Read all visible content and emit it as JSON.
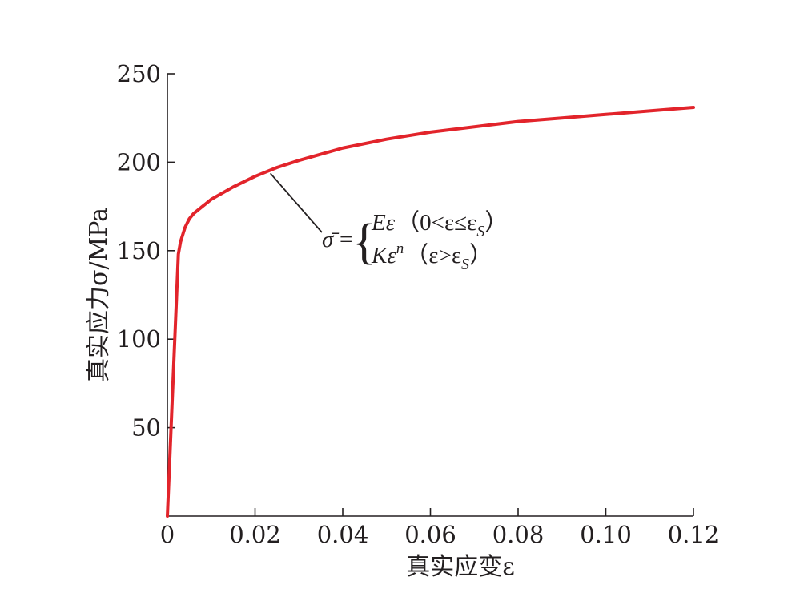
{
  "chart_data": {
    "type": "line",
    "xlabel": "真实应变ε",
    "ylabel": "真实应力σ/MPa",
    "xlim": [
      0,
      0.12
    ],
    "ylim": [
      0,
      250
    ],
    "x_ticks": [
      0,
      0.02,
      0.04,
      0.06,
      0.08,
      0.1,
      0.12
    ],
    "x_tick_labels": [
      "0",
      "0.02",
      "0.04",
      "0.06",
      "0.08",
      "0.10",
      "0.12"
    ],
    "y_ticks": [
      50,
      100,
      150,
      200,
      250
    ],
    "y_tick_labels": [
      "50",
      "100",
      "150",
      "200",
      "250"
    ],
    "grid": false,
    "color": "#e2242b",
    "series": [
      {
        "x": [
          0,
          0.0025,
          0.003,
          0.004,
          0.005,
          0.006,
          0.008,
          0.01,
          0.015,
          0.02,
          0.025,
          0.03,
          0.04,
          0.05,
          0.06,
          0.07,
          0.08,
          0.09,
          0.1,
          0.11,
          0.12
        ],
        "y": [
          0,
          148,
          155,
          163,
          168,
          171,
          175,
          179,
          186,
          192,
          197,
          201,
          208,
          213,
          217,
          220,
          223,
          225,
          227,
          229,
          231
        ]
      }
    ],
    "annotation": {
      "lhs": "σ̄",
      "equals": "=",
      "case1_expr": "Eε",
      "case1_cond_open": "（",
      "case1_cond": "0<ε≤ε",
      "case1_cond_sub": "S",
      "case1_cond_close": "）",
      "case2_expr": "Kε",
      "case2_sup": "n",
      "case2_cond_open": "（",
      "case2_cond": "ε>ε",
      "case2_cond_sub": "S",
      "case2_cond_close": "）",
      "pointer_x": 0.0235
    }
  }
}
